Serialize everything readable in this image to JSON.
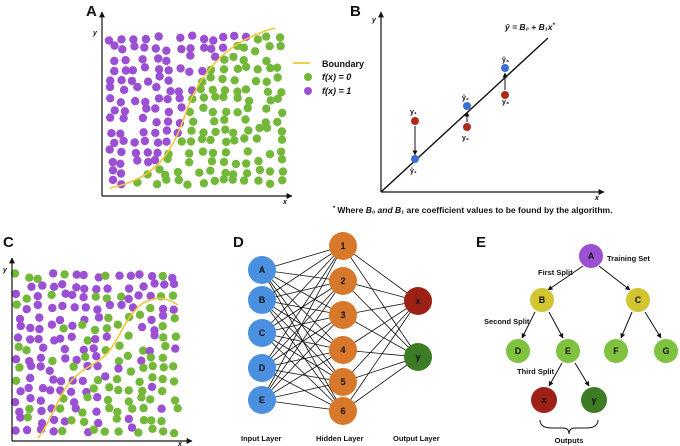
{
  "panels": {
    "A": {
      "label": "A",
      "y_axis": "y",
      "x_axis": "x",
      "legend": {
        "boundary": "Boundary",
        "class0": "f(x) = 0",
        "class1": "f(x) = 1"
      }
    },
    "B": {
      "label": "B",
      "y_axis": "y",
      "x_axis": "x",
      "equation": "ŷ = B₀ + B₁x",
      "equation_mark": "*",
      "footnote_mark": "*",
      "footnote_pre": "Where ",
      "footnote_b0": "B₀",
      "footnote_and": " and ",
      "footnote_b1": "B₁",
      "footnote_post": " are coefficient values to be found by the algorithm.",
      "points": [
        {
          "actual": "y₁",
          "predicted": "ŷ₁"
        },
        {
          "actual": "y₂",
          "predicted": "ŷ₂"
        },
        {
          "actual": "y₃",
          "predicted": "ŷ₃"
        }
      ]
    },
    "C": {
      "label": "C",
      "y_axis": "y",
      "x_axis": "x"
    },
    "D": {
      "label": "D",
      "input_nodes": [
        "A",
        "B",
        "C",
        "D",
        "E"
      ],
      "hidden_nodes": [
        "1",
        "2",
        "3",
        "4",
        "5",
        "6"
      ],
      "output_nodes": [
        "x",
        "y"
      ],
      "captions": {
        "input": "Input Layer",
        "hidden": "Hidden Layer",
        "output": "Output Layer"
      }
    },
    "E": {
      "label": "E",
      "nodes": {
        "root": "A",
        "b": "B",
        "c": "C",
        "d": "D",
        "e": "E",
        "f": "F",
        "g": "G",
        "x": "x",
        "y": "y"
      },
      "annotations": {
        "training": "Training Set",
        "split1": "First Split",
        "split2": "Second Split",
        "split3": "Third Split",
        "outputs": "Outputs"
      }
    }
  },
  "colors": {
    "green": "#74b83a",
    "purple": "#9b4fd3",
    "boundary": "#f0c63a",
    "blue": "#4a8fe0",
    "orange": "#d8782a",
    "red": "#9c2013",
    "dark_green": "#3e7b25",
    "olive": "#d3c431",
    "light_green": "#7fc23f",
    "tree_purple": "#9b4fd3"
  }
}
